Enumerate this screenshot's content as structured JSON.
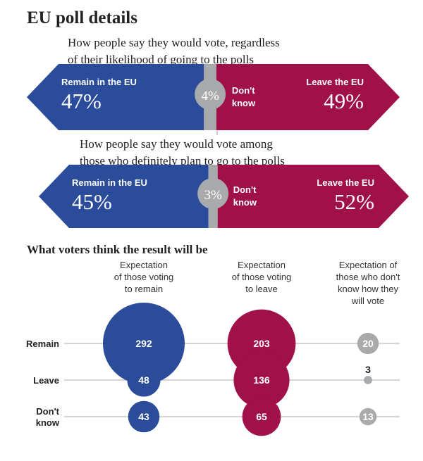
{
  "title": "EU poll details",
  "colors": {
    "remain": "#2a4c9b",
    "leave": "#a01149",
    "dontknow": "#a9aaac",
    "axis": "#999999",
    "text": "#222222"
  },
  "chart_data": [
    {
      "type": "bar",
      "subtitle_lines": [
        "How people say they would vote, regardless",
        "of their likelihood of going to the polls"
      ],
      "categories": [
        "Remain in the EU",
        "Don't know",
        "Leave the EU"
      ],
      "values": [
        47,
        4,
        49
      ],
      "labels": [
        "47%",
        "4%",
        "49%"
      ],
      "dontknow_lines": [
        "Don't",
        "know"
      ]
    },
    {
      "type": "bar",
      "subtitle_lines": [
        "How people say they would vote among",
        "those who definitely plan to go to the polls"
      ],
      "categories": [
        "Remain in the EU",
        "Don't know",
        "Leave the EU"
      ],
      "values": [
        45,
        3,
        52
      ],
      "labels": [
        "45%",
        "3%",
        "52%"
      ],
      "dontknow_lines": [
        "Don't",
        "know"
      ]
    },
    {
      "type": "scatter",
      "title": "What voters think the result will be",
      "columns": [
        {
          "lines": [
            "Expectation",
            "of those voting",
            "to remain"
          ],
          "color": "remain"
        },
        {
          "lines": [
            "Expectation",
            "of those voting",
            "to leave"
          ],
          "color": "leave"
        },
        {
          "lines": [
            "Expectation of",
            "those who don't",
            "know how they",
            "will vote"
          ],
          "color": "dontknow"
        }
      ],
      "rows": [
        {
          "lines": [
            "Remain"
          ]
        },
        {
          "lines": [
            "Leave"
          ]
        },
        {
          "lines": [
            "Don't",
            "know"
          ]
        }
      ],
      "values": [
        [
          292,
          203,
          20
        ],
        [
          48,
          136,
          3
        ],
        [
          43,
          65,
          13
        ]
      ]
    }
  ]
}
